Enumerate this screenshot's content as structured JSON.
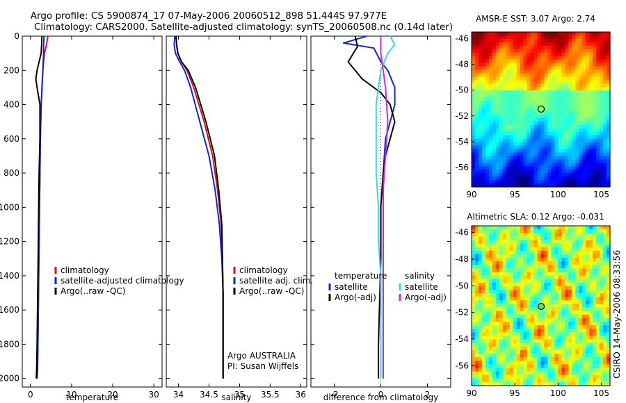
{
  "header": {
    "line1": "Argo profile: CS 5900874_17 07-May-2006 20060512_898 51.444S 97.977E",
    "line2": "Climatology: CARS2000. Satellite-adjusted climatology: synTS_20060508.nc (0.14d later)"
  },
  "colors": {
    "climatology": "#dd1111",
    "satellite": "#1122dd",
    "argo": "#000000",
    "sal_satellite": "#33dddd",
    "sal_argo": "#dd22dd"
  },
  "chart_data": [
    {
      "type": "line",
      "xlabel": "temperature",
      "ylabel": "",
      "xlim": [
        -2,
        32
      ],
      "ylim": [
        2050,
        0
      ],
      "xticks": [
        0,
        10,
        20,
        30
      ],
      "yticks": [
        0,
        200,
        400,
        600,
        800,
        1000,
        1200,
        1400,
        1600,
        1800,
        2000
      ],
      "legend": [
        "climatology",
        "satellite-adjusted climatology",
        "Argo(..raw -QC)"
      ],
      "legend_position": "lower-right",
      "series": [
        {
          "name": "climatology",
          "x": [
            4.2,
            3.9,
            3.4,
            3.0,
            2.8,
            2.6,
            2.4,
            2.3,
            2.2,
            2.1,
            2.0,
            1.9,
            1.8,
            1.7,
            1.6
          ],
          "y": [
            0,
            50,
            100,
            200,
            300,
            400,
            600,
            800,
            1000,
            1200,
            1400,
            1600,
            1800,
            1950,
            2000
          ]
        },
        {
          "name": "satellite-adjusted climatology",
          "x": [
            3.3,
            3.2,
            3.2,
            3.0,
            2.8,
            2.6,
            2.4,
            2.3,
            2.2,
            2.1,
            2.0,
            1.9,
            1.8,
            1.7,
            1.6
          ],
          "y": [
            0,
            50,
            100,
            200,
            300,
            400,
            600,
            800,
            1000,
            1200,
            1400,
            1600,
            1800,
            1950,
            2000
          ]
        },
        {
          "name": "Argo(..raw -QC)",
          "x": [
            2.8,
            2.6,
            2.1,
            1.6,
            1.3,
            1.6,
            2.3,
            2.3,
            2.1,
            2.0,
            1.9,
            1.8,
            1.7,
            1.6,
            1.5,
            1.4
          ],
          "y": [
            0,
            100,
            150,
            200,
            250,
            300,
            400,
            600,
            800,
            1000,
            1200,
            1400,
            1600,
            1800,
            1950,
            2000
          ]
        }
      ]
    },
    {
      "type": "line",
      "xlabel": "salinity",
      "ylabel": "",
      "xlim": [
        33.8,
        36.1
      ],
      "ylim": [
        2050,
        0
      ],
      "xticks": [
        34,
        34.5,
        35,
        35.5,
        36
      ],
      "yticks": [
        0,
        200,
        400,
        600,
        800,
        1000,
        1200,
        1400,
        1600,
        1800,
        2000
      ],
      "legend": [
        "climatology",
        "satellite adj. clim.",
        "Argo(..raw -QC)"
      ],
      "legend_position": "lower-right",
      "annotation": [
        "Argo AUSTRALIA",
        "PI: Susan Wijffels"
      ],
      "series": [
        {
          "name": "climatology",
          "x": [
            33.96,
            33.97,
            33.99,
            34.05,
            34.14,
            34.25,
            34.42,
            34.56,
            34.64,
            34.7,
            34.72,
            34.73,
            34.73,
            34.73
          ],
          "y": [
            0,
            50,
            100,
            150,
            200,
            300,
            500,
            700,
            900,
            1100,
            1300,
            1500,
            1800,
            2000
          ]
        },
        {
          "name": "satellite adj. clim.",
          "x": [
            33.94,
            33.93,
            33.95,
            34.02,
            34.1,
            34.2,
            34.35,
            34.5,
            34.6,
            34.67,
            34.71,
            34.73,
            34.73,
            34.73
          ],
          "y": [
            0,
            50,
            100,
            150,
            200,
            300,
            500,
            700,
            900,
            1100,
            1300,
            1500,
            1800,
            2000
          ]
        },
        {
          "name": "Argo(..raw -QC)",
          "x": [
            33.96,
            33.97,
            33.99,
            34.05,
            34.16,
            34.28,
            34.45,
            34.59,
            34.66,
            34.71,
            34.72,
            34.73,
            34.73,
            34.73
          ],
          "y": [
            0,
            50,
            100,
            150,
            200,
            300,
            500,
            700,
            900,
            1100,
            1300,
            1500,
            1800,
            2000
          ]
        }
      ]
    },
    {
      "type": "line",
      "xlabel": "difference from climatology",
      "ylabel": "",
      "xlim": [
        -3,
        3
      ],
      "ylim": [
        2050,
        0
      ],
      "xticks": [
        -2,
        0,
        2
      ],
      "yticks": [
        0,
        200,
        400,
        600,
        800,
        1000,
        1200,
        1400,
        1600,
        1800,
        2000
      ],
      "legend_temperature": [
        "temperature",
        "satellite",
        "Argo(-adj)"
      ],
      "legend_salinity": [
        "salinity",
        "satellite",
        "Argo(-adj)"
      ],
      "legend_position": "lower-right",
      "series": [
        {
          "name": "temperature satellite",
          "x": [
            -0.6,
            -1.6,
            -0.3,
            0.0,
            0.3,
            0.6,
            0.6,
            0.4,
            0.2,
            0.1,
            0.1,
            0.1,
            0.1,
            0.1,
            0.1
          ],
          "y": [
            0,
            40,
            70,
            150,
            200,
            300,
            400,
            500,
            600,
            800,
            1000,
            1300,
            1600,
            1800,
            2000
          ]
        },
        {
          "name": "temperature Argo(-adj)",
          "x": [
            -1.1,
            -1.0,
            -1.4,
            -0.8,
            0.0,
            0.4,
            0.6,
            0.4,
            0.2,
            0.1,
            0.0,
            0.0,
            -0.1,
            -0.1
          ],
          "y": [
            0,
            60,
            150,
            250,
            330,
            400,
            500,
            600,
            700,
            800,
            1000,
            1300,
            1800,
            2000
          ]
        },
        {
          "name": "salinity satellite",
          "x": [
            0.4,
            0.6,
            0.3,
            0.0,
            -0.2,
            -0.2,
            -0.2,
            -0.1,
            -0.1,
            0.0,
            0.0,
            0.0,
            0.0
          ],
          "y": [
            0,
            50,
            100,
            200,
            400,
            600,
            800,
            1000,
            1200,
            1400,
            1600,
            1800,
            2000
          ]
        },
        {
          "name": "salinity Argo(-adj)",
          "x": [
            0.0,
            0.0,
            0.1,
            0.2,
            0.3,
            0.2,
            0.1,
            0.1,
            0.1,
            0.1,
            0.1,
            0.1
          ],
          "y": [
            0,
            100,
            200,
            300,
            500,
            700,
            900,
            1100,
            1300,
            1500,
            1800,
            2000
          ]
        }
      ]
    },
    {
      "type": "heatmap",
      "title": "AMSR-E SST: 3.07 Argo: 2.74",
      "xlim": [
        90,
        106
      ],
      "ylim": [
        -57.5,
        -45.5
      ],
      "xticks": [
        90,
        95,
        100,
        105
      ],
      "yticks": [
        -46,
        -48,
        -50,
        -52,
        -54,
        -56
      ],
      "marker": {
        "lon": 97.977,
        "lat": -51.444
      }
    },
    {
      "type": "heatmap",
      "title": "Altimetric SLA: 0.12 Argo: -0.031",
      "xlim": [
        90,
        106
      ],
      "ylim": [
        -57.5,
        -45.5
      ],
      "xticks": [
        90,
        95,
        100,
        105
      ],
      "yticks": [
        -46,
        -48,
        -50,
        -52,
        -54,
        -56
      ],
      "marker": {
        "lon": 97.977,
        "lat": -51.444
      }
    }
  ],
  "footer": {
    "side_text": "CSIRO 14-May-2006 08:33:56"
  }
}
